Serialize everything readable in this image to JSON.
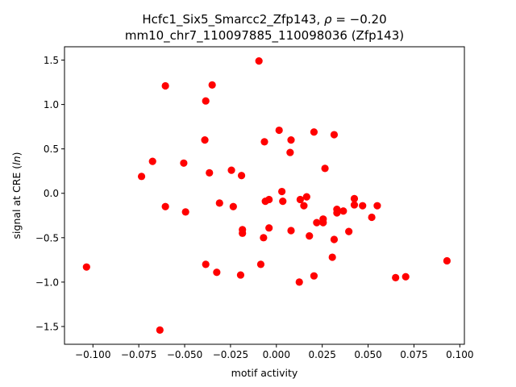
{
  "chart_data": {
    "type": "scatter",
    "title_line1_prefix": "Hcfc1_Six5_Smarcc2_Zfp143, ",
    "title_rho_symbol": "ρ",
    "title_rho_value": " = −0.20",
    "title_line2": "mm10_chr7_110097885_110098036 (Zfp143)",
    "xlabel": "motif activity",
    "ylabel_prefix": "signal at CRE (",
    "ylabel_italic": "ln",
    "ylabel_suffix": ")",
    "xlim": [
      -0.1155,
      0.1025
    ],
    "ylim": [
      -1.7,
      1.65
    ],
    "xticks": [
      -0.1,
      -0.075,
      -0.05,
      -0.025,
      0.0,
      0.025,
      0.05,
      0.075,
      0.1
    ],
    "xtick_labels": [
      "−0.100",
      "−0.075",
      "−0.050",
      "−0.025",
      "0.000",
      "0.025",
      "0.050",
      "0.075",
      "0.100"
    ],
    "yticks": [
      -1.5,
      -1.0,
      -0.5,
      0.0,
      0.5,
      1.0,
      1.5
    ],
    "ytick_labels": [
      "−1.5",
      "−1.0",
      "−0.5",
      "0.0",
      "0.5",
      "1.0",
      "1.5"
    ],
    "grid": false,
    "marker_color": "#ff0000",
    "points": [
      {
        "x": -0.1035,
        "y": -0.83
      },
      {
        "x": -0.0735,
        "y": 0.19
      },
      {
        "x": -0.0675,
        "y": 0.36
      },
      {
        "x": -0.0635,
        "y": -1.54
      },
      {
        "x": -0.0605,
        "y": 1.21
      },
      {
        "x": -0.0605,
        "y": -0.15
      },
      {
        "x": -0.0505,
        "y": 0.34
      },
      {
        "x": -0.0495,
        "y": -0.21
      },
      {
        "x": -0.039,
        "y": 0.6
      },
      {
        "x": -0.0385,
        "y": 1.04
      },
      {
        "x": -0.0385,
        "y": -0.8
      },
      {
        "x": -0.0365,
        "y": 0.23
      },
      {
        "x": -0.035,
        "y": 1.22
      },
      {
        "x": -0.0325,
        "y": -0.89
      },
      {
        "x": -0.031,
        "y": -0.11
      },
      {
        "x": -0.0245,
        "y": 0.26
      },
      {
        "x": -0.0235,
        "y": -0.15
      },
      {
        "x": -0.0195,
        "y": -0.92
      },
      {
        "x": -0.019,
        "y": 0.2
      },
      {
        "x": -0.0185,
        "y": -0.41
      },
      {
        "x": -0.0185,
        "y": -0.45
      },
      {
        "x": -0.0095,
        "y": 1.49
      },
      {
        "x": -0.0085,
        "y": -0.8
      },
      {
        "x": -0.007,
        "y": -0.5
      },
      {
        "x": -0.0065,
        "y": 0.58
      },
      {
        "x": -0.006,
        "y": -0.09
      },
      {
        "x": -0.004,
        "y": -0.07
      },
      {
        "x": -0.004,
        "y": -0.39
      },
      {
        "x": 0.0015,
        "y": 0.71
      },
      {
        "x": 0.003,
        "y": 0.02
      },
      {
        "x": 0.0035,
        "y": -0.09
      },
      {
        "x": 0.0075,
        "y": 0.46
      },
      {
        "x": 0.008,
        "y": 0.6
      },
      {
        "x": 0.008,
        "y": -0.42
      },
      {
        "x": 0.0125,
        "y": -1.0
      },
      {
        "x": 0.013,
        "y": -0.07
      },
      {
        "x": 0.015,
        "y": -0.14
      },
      {
        "x": 0.0165,
        "y": -0.04
      },
      {
        "x": 0.018,
        "y": -0.48
      },
      {
        "x": 0.0205,
        "y": 0.69
      },
      {
        "x": 0.0205,
        "y": -0.93
      },
      {
        "x": 0.022,
        "y": -0.33
      },
      {
        "x": 0.0255,
        "y": -0.29
      },
      {
        "x": 0.0255,
        "y": -0.33
      },
      {
        "x": 0.0265,
        "y": 0.28
      },
      {
        "x": 0.0305,
        "y": -0.72
      },
      {
        "x": 0.0315,
        "y": 0.66
      },
      {
        "x": 0.0315,
        "y": -0.52
      },
      {
        "x": 0.033,
        "y": -0.18
      },
      {
        "x": 0.033,
        "y": -0.22
      },
      {
        "x": 0.0365,
        "y": -0.2
      },
      {
        "x": 0.0395,
        "y": -0.43
      },
      {
        "x": 0.0425,
        "y": -0.06
      },
      {
        "x": 0.0425,
        "y": -0.13
      },
      {
        "x": 0.047,
        "y": -0.14
      },
      {
        "x": 0.052,
        "y": -0.27
      },
      {
        "x": 0.055,
        "y": -0.14
      },
      {
        "x": 0.065,
        "y": -0.95
      },
      {
        "x": 0.0705,
        "y": -0.94
      },
      {
        "x": 0.093,
        "y": -0.76
      }
    ]
  }
}
